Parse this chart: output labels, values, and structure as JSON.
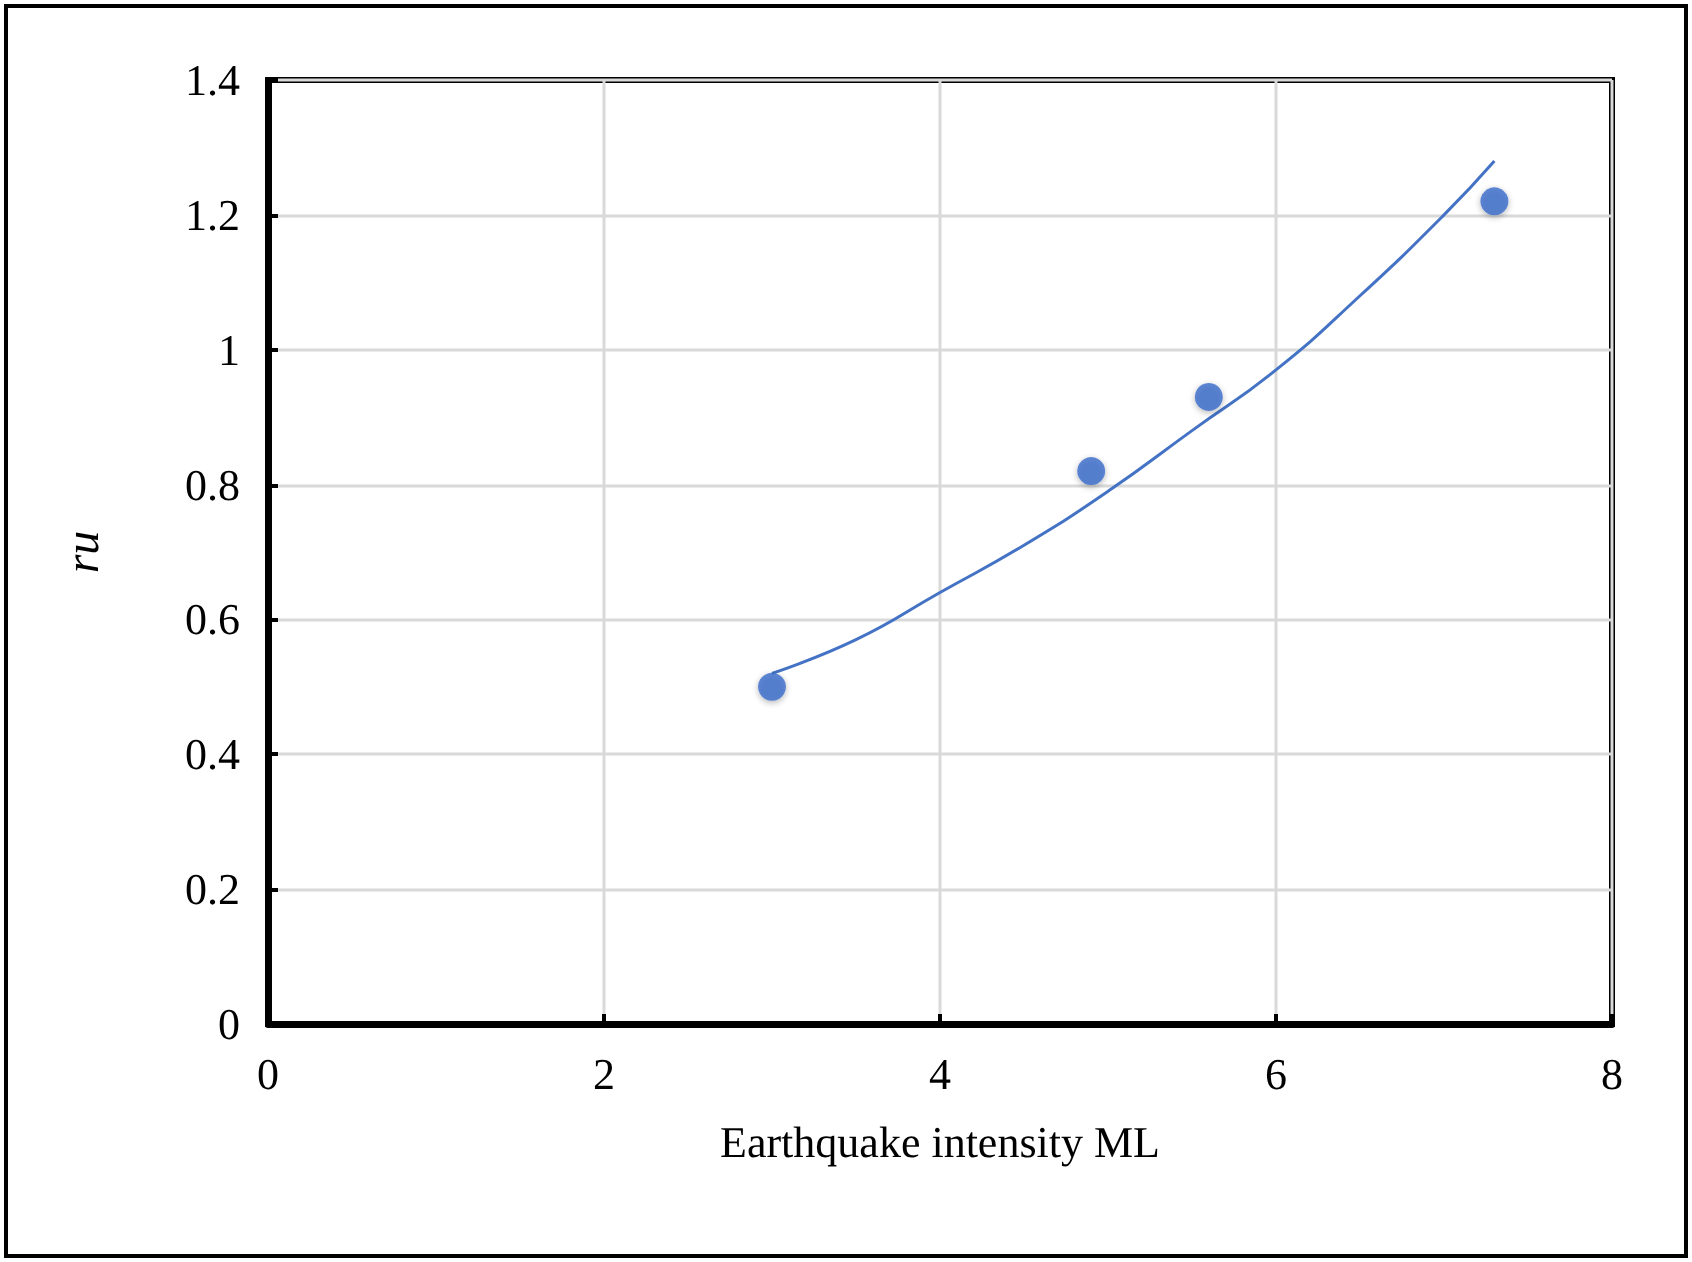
{
  "chart_data": {
    "type": "scatter",
    "xlabel": "Earthquake intensity ML",
    "ylabel": "ru",
    "xlim": [
      0,
      8
    ],
    "xticks": [
      0,
      2,
      4,
      6,
      8
    ],
    "ylim": [
      0,
      1.4
    ],
    "yticks": [
      0,
      0.2,
      0.4,
      0.6,
      0.8,
      1,
      1.2,
      1.4
    ],
    "grid": true,
    "marker": "circle",
    "series": [
      {
        "color": "#3a6bc9",
        "x": [
          3,
          4.9,
          5.6,
          7.3
        ],
        "values": [
          0.5,
          0.82,
          0.93,
          1.22
        ]
      },
      {
        "type": "line",
        "color": "#4472c4",
        "marker": "none",
        "line_style": "solid",
        "x": [
          3,
          3.5,
          4,
          4.5,
          5,
          5.5,
          6,
          6.5,
          7,
          7.3
        ],
        "values": [
          0.52,
          0.57,
          0.64,
          0.71,
          0.79,
          0.88,
          0.97,
          1.08,
          1.2,
          1.28
        ]
      }
    ]
  }
}
